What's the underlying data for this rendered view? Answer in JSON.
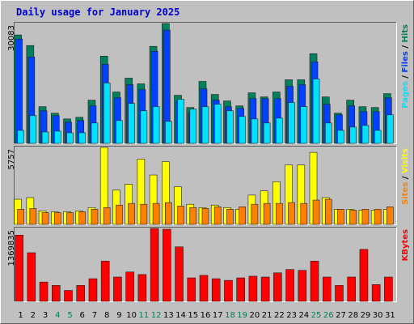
{
  "chart_data": [
    {
      "type": "bar",
      "title": "Daily usage for January 2025",
      "categories": [
        "1",
        "2",
        "3",
        "4",
        "5",
        "6",
        "7",
        "8",
        "9",
        "10",
        "11",
        "12",
        "13",
        "14",
        "15",
        "16",
        "17",
        "18",
        "19",
        "20",
        "21",
        "22",
        "23",
        "24",
        "25",
        "26",
        "27",
        "28",
        "29",
        "30",
        "31"
      ],
      "category_colors": [
        "#000000",
        "#000000",
        "#000000",
        "#00805c",
        "#00805c",
        "#000000",
        "#000000",
        "#000000",
        "#000000",
        "#000000",
        "#00805c",
        "#00805c",
        "#000000",
        "#000000",
        "#000000",
        "#000000",
        "#000000",
        "#00805c",
        "#00805c",
        "#000000",
        "#000000",
        "#000000",
        "#000000",
        "#000000",
        "#00805c",
        "#00805c",
        "#000000",
        "#000000",
        "#000000",
        "#000000",
        "#000000"
      ],
      "legend_separator": " / ",
      "series": [
        {
          "name": "Hits",
          "color": "#00805c",
          "values": [
            27213,
            24553,
            9208,
            7571,
            6139,
            6548,
            10845,
            21895,
            12891,
            16370,
            14938,
            24351,
            30083,
            12073,
            9003,
            15552,
            12277,
            10641,
            9413,
            12687,
            11664,
            12891,
            15961,
            15961,
            22509,
            11664,
            7571,
            10845,
            9208,
            9003,
            12482
          ]
        },
        {
          "name": "Files",
          "color": "#0040ff",
          "values": [
            26189,
            21688,
            8184,
            6956,
            5320,
            5729,
            9412,
            19846,
            11458,
            14731,
            13504,
            23120,
            28439,
            10639,
            7570,
            13708,
            10844,
            9207,
            8798,
            11253,
            11253,
            11253,
            14322,
            14731,
            20460,
            9821,
            7161,
            9412,
            7979,
            7979,
            11458
          ]
        },
        {
          "name": "Pages",
          "color": "#00e0ff",
          "values": [
            3274,
            6956,
            2864,
            3069,
            2660,
            2660,
            5115,
            15140,
            5729,
            10025,
            8184,
            9207,
            5524,
            11048,
            8593,
            9207,
            9821,
            8184,
            6752,
            6138,
            5115,
            6343,
            10230,
            9207,
            16163,
            5115,
            3274,
            4092,
            4501,
            3274,
            7161
          ]
        }
      ],
      "ylim": [
        0,
        30083
      ],
      "yticks": [
        30083
      ]
    },
    {
      "type": "bar",
      "legend_separator": " / ",
      "series": [
        {
          "name": "Visits",
          "color": "#ffff00",
          "values": [
            1878,
            2003,
            1002,
            939,
            939,
            1002,
            1252,
            5757,
            2567,
            3005,
            4883,
            3693,
            4695,
            2817,
            1502,
            1252,
            1440,
            1252,
            1127,
            2191,
            2504,
            3193,
            4445,
            4445,
            5384,
            2003,
            1127,
            1127,
            1064,
            1064,
            1127
          ]
        },
        {
          "name": "Sites",
          "color": "#ff8000",
          "values": [
            1127,
            1189,
            876,
            876,
            876,
            939,
            1127,
            1252,
            1440,
            1565,
            1502,
            1565,
            1628,
            1377,
            1252,
            1189,
            1315,
            1127,
            1315,
            1502,
            1565,
            1565,
            1628,
            1565,
            1815,
            1878,
            1127,
            1064,
            1127,
            1127,
            1315
          ]
        }
      ],
      "ylim": [
        0,
        5757
      ],
      "yticks": [
        5757
      ]
    },
    {
      "type": "bar",
      "series": [
        {
          "name": "KBytes",
          "color": "#ff0000",
          "values": [
            1243855,
            913210,
            362135,
            299155,
            204685,
            299155,
            425115,
            755760,
            456605,
            551075,
            503840,
            1369835,
            1354070,
            1023425,
            440860,
            488095,
            425115,
            393625,
            440860,
            472350,
            456605,
            535330,
            598310,
            582565,
            755760,
            456605,
            299155,
            456605,
            976190,
            314900,
            456605
          ]
        }
      ],
      "ylim": [
        0,
        1369835
      ],
      "yticks": [
        1369835
      ]
    }
  ]
}
